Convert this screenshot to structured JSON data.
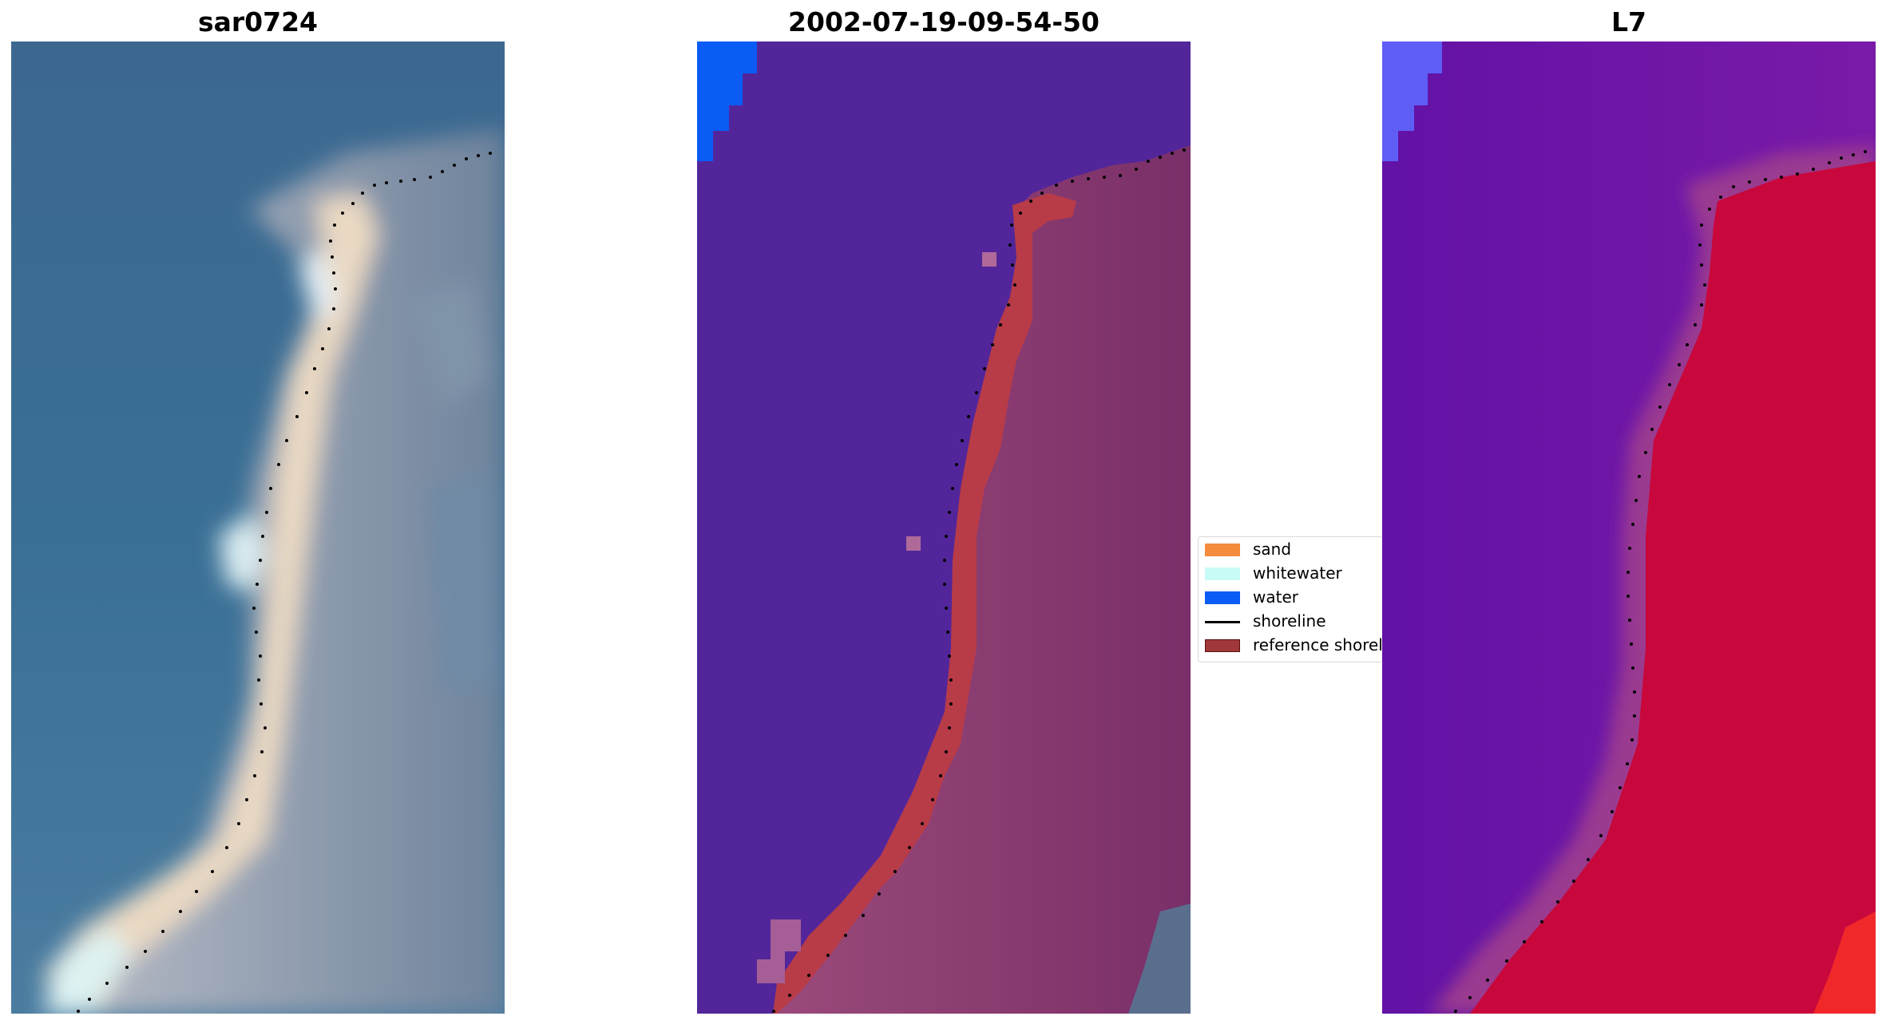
{
  "panels": [
    {
      "title": "sar0724"
    },
    {
      "title": "2002-07-19-09-54-50"
    },
    {
      "title": "L7"
    }
  ],
  "legend": {
    "items": [
      {
        "label": "sand",
        "color": "#f58b3c",
        "kind": "patch"
      },
      {
        "label": "whitewater",
        "color": "#c8fbf5",
        "kind": "patch"
      },
      {
        "label": "water",
        "color": "#0a5cf5",
        "kind": "patch"
      },
      {
        "label": "shoreline",
        "color": "#000000",
        "kind": "line"
      },
      {
        "label": "reference shoreline buffer",
        "color": "#a0383a",
        "kind": "patch"
      }
    ]
  },
  "colors": {
    "rgb_water": "#3f6c92",
    "rgb_sand": "#e8d7c4",
    "rgb_land": "#8a96a8",
    "class_water": "#52269a",
    "class_water_blue": "#0a5cf5",
    "class_buffer": "#b83b48",
    "class_land": "#7a2f68",
    "ndwi_low": "#6a1aa8",
    "ndwi_high": "#c8083c"
  }
}
